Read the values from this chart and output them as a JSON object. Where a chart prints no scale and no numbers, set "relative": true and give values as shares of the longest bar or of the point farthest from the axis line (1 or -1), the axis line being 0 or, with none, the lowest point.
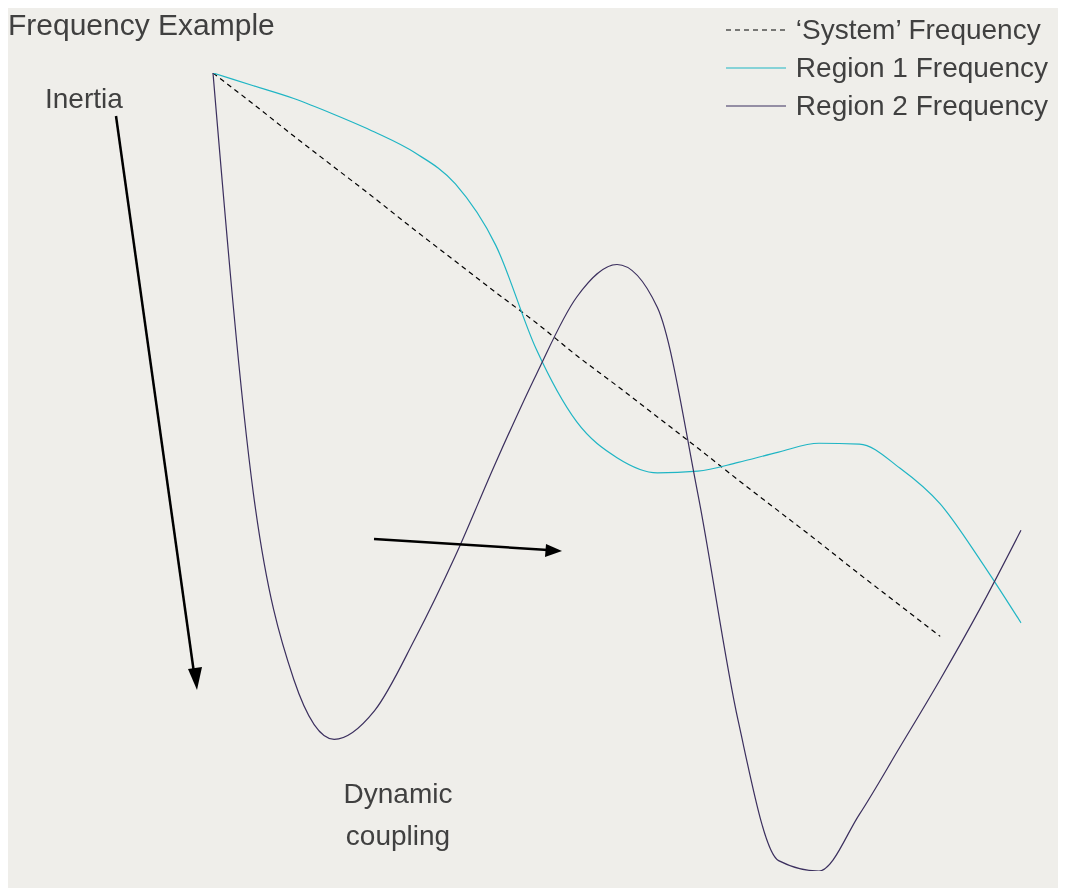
{
  "chart_data": {
    "type": "line",
    "title": "Frequency Example",
    "relative": true,
    "legend": "top right",
    "marker": "none",
    "grid": false,
    "categories": [
      null,
      null,
      null,
      null,
      null,
      null,
      null,
      null,
      null,
      null,
      null,
      null,
      null,
      null,
      null,
      null,
      null,
      null,
      null,
      null,
      null
    ],
    "series": [
      {
        "name": "‘System’ Frequency",
        "color": "#000000",
        "line_style": "dashed",
        "values": [
          1.0,
          0.961,
          0.921,
          0.882,
          0.843,
          0.803,
          0.764,
          0.725,
          0.687,
          0.646,
          0.608,
          0.569,
          0.53,
          0.49,
          0.451,
          0.412,
          0.372,
          0.333,
          0.294,
          null,
          null
        ]
      },
      {
        "name": "Region 1 Frequency",
        "color": "#1fb5c4",
        "line_style": "solid",
        "values": [
          1.0,
          0.984,
          0.968,
          0.948,
          0.926,
          0.9,
          0.861,
          0.784,
          0.654,
          0.563,
          0.518,
          0.499,
          0.501,
          0.512,
          0.525,
          0.536,
          0.535,
          0.505,
          0.46,
          0.389,
          0.311
        ]
      },
      {
        "name": "Region 2 Frequency",
        "color": "#3b2f5e",
        "line_style": "solid",
        "values": [
          1.0,
          0.473,
          0.24,
          0.165,
          0.201,
          0.291,
          0.395,
          0.512,
          0.622,
          0.719,
          0.76,
          0.706,
          0.473,
          0.188,
          0.013,
          0.0,
          0.071,
          0.155,
          0.24,
          0.33,
          0.427
        ]
      }
    ],
    "annotations": [
      "Inertia",
      "Dynamic coupling"
    ]
  }
}
